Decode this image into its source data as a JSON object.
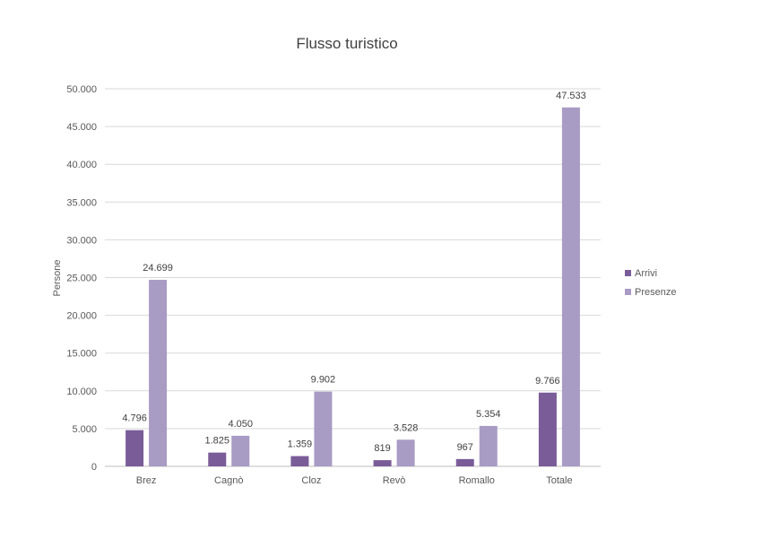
{
  "chart_data": {
    "type": "bar",
    "title": "Flusso turistico",
    "ylabel": "Persone",
    "xlabel": "",
    "categories": [
      "Brez",
      "Cagnò",
      "Cloz",
      "Revò",
      "Romallo",
      "Totale"
    ],
    "series": [
      {
        "name": "Arrivi",
        "color": "#7a5c99",
        "values": [
          4796,
          1825,
          1359,
          819,
          967,
          9766
        ],
        "labels": [
          "4.796",
          "1.825",
          "1.359",
          "819",
          "967",
          "9.766"
        ]
      },
      {
        "name": "Presenze",
        "color": "#a89bc4",
        "values": [
          24699,
          4050,
          9902,
          3528,
          5354,
          47533
        ],
        "labels": [
          "24.699",
          "4.050",
          "9.902",
          "3.528",
          "5.354",
          "47.533"
        ]
      }
    ],
    "ylim": [
      0,
      50000
    ],
    "yticks": [
      0,
      5000,
      10000,
      15000,
      20000,
      25000,
      30000,
      35000,
      40000,
      45000,
      50000
    ],
    "ytick_labels": [
      "0",
      "5.000",
      "10.000",
      "15.000",
      "20.000",
      "25.000",
      "30.000",
      "35.000",
      "40.000",
      "45.000",
      "50.000"
    ],
    "grid": true,
    "legend": "right"
  }
}
